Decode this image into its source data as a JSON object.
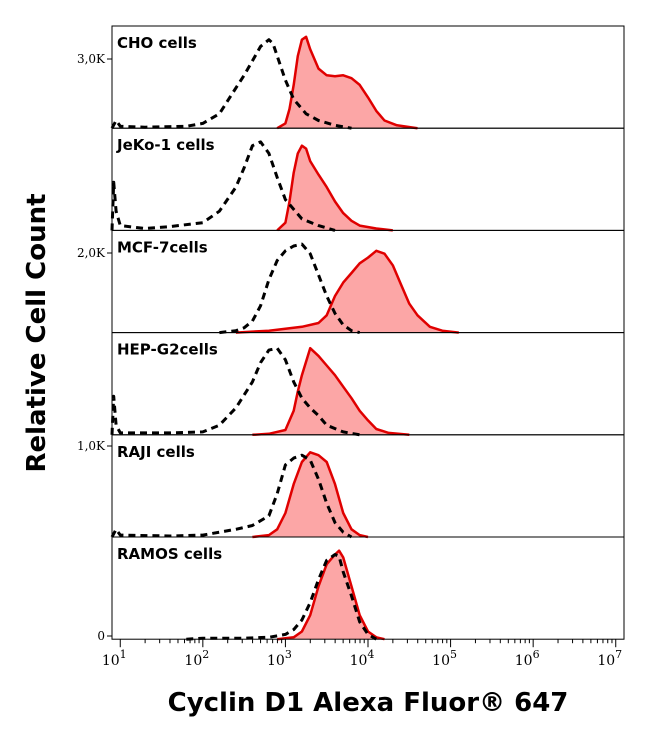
{
  "chart_data": {
    "type": "area",
    "xlabel": "Cyclin D1 Alexa Fluor® 647",
    "ylabel": "Relative Cell Count",
    "x_scale": "log",
    "x_ticks": [
      {
        "base": "10",
        "exp": "1"
      },
      {
        "base": "10",
        "exp": "2"
      },
      {
        "base": "10",
        "exp": "3"
      },
      {
        "base": "10",
        "exp": "4"
      },
      {
        "base": "10",
        "exp": "5"
      },
      {
        "base": "10",
        "exp": "6"
      },
      {
        "base": "10",
        "exp": "7"
      }
    ],
    "y_ticks": [
      "3,0K",
      "2,0K",
      "1,0K",
      "0"
    ],
    "xlim": [
      0.9,
      7.1
    ],
    "grid": false,
    "colors": {
      "sample_fill": "#fca6a6",
      "sample_line": "#e00000",
      "control_line": "#000000"
    },
    "panels": [
      {
        "label": "CHO cells",
        "sample": [
          [
            2.9,
            0
          ],
          [
            3.0,
            0.05
          ],
          [
            3.05,
            0.2
          ],
          [
            3.1,
            0.45
          ],
          [
            3.15,
            0.75
          ],
          [
            3.2,
            0.92
          ],
          [
            3.25,
            0.95
          ],
          [
            3.3,
            0.82
          ],
          [
            3.4,
            0.62
          ],
          [
            3.5,
            0.55
          ],
          [
            3.6,
            0.54
          ],
          [
            3.7,
            0.55
          ],
          [
            3.8,
            0.52
          ],
          [
            3.9,
            0.45
          ],
          [
            4.0,
            0.32
          ],
          [
            4.1,
            0.18
          ],
          [
            4.2,
            0.08
          ],
          [
            4.35,
            0.03
          ],
          [
            4.6,
            0
          ]
        ],
        "control": [
          [
            0.9,
            0
          ],
          [
            0.95,
            0.08
          ],
          [
            1.0,
            0.02
          ],
          [
            1.3,
            0.01
          ],
          [
            1.8,
            0.02
          ],
          [
            2.0,
            0.05
          ],
          [
            2.2,
            0.15
          ],
          [
            2.35,
            0.35
          ],
          [
            2.5,
            0.55
          ],
          [
            2.6,
            0.7
          ],
          [
            2.7,
            0.85
          ],
          [
            2.8,
            0.92
          ],
          [
            2.85,
            0.88
          ],
          [
            2.9,
            0.75
          ],
          [
            3.0,
            0.5
          ],
          [
            3.1,
            0.3
          ],
          [
            3.25,
            0.15
          ],
          [
            3.4,
            0.08
          ],
          [
            3.6,
            0.03
          ],
          [
            3.8,
            0
          ]
        ]
      },
      {
        "label": "JeKo-1 cells",
        "sample": [
          [
            2.9,
            0
          ],
          [
            3.0,
            0.08
          ],
          [
            3.05,
            0.3
          ],
          [
            3.1,
            0.6
          ],
          [
            3.15,
            0.8
          ],
          [
            3.2,
            0.88
          ],
          [
            3.25,
            0.85
          ],
          [
            3.3,
            0.72
          ],
          [
            3.4,
            0.58
          ],
          [
            3.5,
            0.45
          ],
          [
            3.6,
            0.3
          ],
          [
            3.7,
            0.18
          ],
          [
            3.8,
            0.1
          ],
          [
            3.9,
            0.05
          ],
          [
            4.1,
            0.02
          ],
          [
            4.3,
            0
          ]
        ],
        "control": [
          [
            0.9,
            0
          ],
          [
            0.92,
            0.5
          ],
          [
            0.95,
            0.2
          ],
          [
            1.0,
            0.05
          ],
          [
            1.3,
            0.02
          ],
          [
            1.6,
            0.04
          ],
          [
            2.0,
            0.08
          ],
          [
            2.2,
            0.2
          ],
          [
            2.4,
            0.45
          ],
          [
            2.5,
            0.65
          ],
          [
            2.6,
            0.88
          ],
          [
            2.7,
            0.92
          ],
          [
            2.8,
            0.8
          ],
          [
            2.9,
            0.55
          ],
          [
            3.0,
            0.32
          ],
          [
            3.2,
            0.12
          ],
          [
            3.4,
            0.05
          ],
          [
            3.6,
            0
          ]
        ]
      },
      {
        "label": "MCF-7cells",
        "sample": [
          [
            2.4,
            0
          ],
          [
            2.6,
            0.01
          ],
          [
            2.8,
            0.02
          ],
          [
            3.0,
            0.04
          ],
          [
            3.2,
            0.06
          ],
          [
            3.4,
            0.1
          ],
          [
            3.5,
            0.18
          ],
          [
            3.6,
            0.38
          ],
          [
            3.7,
            0.52
          ],
          [
            3.8,
            0.62
          ],
          [
            3.9,
            0.72
          ],
          [
            4.0,
            0.78
          ],
          [
            4.1,
            0.85
          ],
          [
            4.2,
            0.82
          ],
          [
            4.3,
            0.7
          ],
          [
            4.4,
            0.5
          ],
          [
            4.5,
            0.3
          ],
          [
            4.6,
            0.18
          ],
          [
            4.75,
            0.06
          ],
          [
            4.9,
            0.02
          ],
          [
            5.1,
            0
          ]
        ],
        "control": [
          [
            2.2,
            0
          ],
          [
            2.4,
            0.02
          ],
          [
            2.5,
            0.05
          ],
          [
            2.6,
            0.12
          ],
          [
            2.7,
            0.28
          ],
          [
            2.8,
            0.55
          ],
          [
            2.9,
            0.75
          ],
          [
            3.0,
            0.85
          ],
          [
            3.1,
            0.9
          ],
          [
            3.2,
            0.92
          ],
          [
            3.3,
            0.82
          ],
          [
            3.4,
            0.6
          ],
          [
            3.5,
            0.38
          ],
          [
            3.6,
            0.2
          ],
          [
            3.7,
            0.08
          ],
          [
            3.8,
            0.02
          ],
          [
            3.9,
            0
          ]
        ]
      },
      {
        "label": "HEP-G2cells",
        "sample": [
          [
            2.6,
            0
          ],
          [
            2.8,
            0.01
          ],
          [
            3.0,
            0.05
          ],
          [
            3.1,
            0.25
          ],
          [
            3.15,
            0.45
          ],
          [
            3.2,
            0.62
          ],
          [
            3.3,
            0.9
          ],
          [
            3.4,
            0.82
          ],
          [
            3.5,
            0.72
          ],
          [
            3.6,
            0.62
          ],
          [
            3.7,
            0.5
          ],
          [
            3.8,
            0.38
          ],
          [
            3.9,
            0.25
          ],
          [
            4.0,
            0.15
          ],
          [
            4.1,
            0.06
          ],
          [
            4.25,
            0.02
          ],
          [
            4.5,
            0
          ]
        ],
        "control": [
          [
            0.9,
            0
          ],
          [
            0.92,
            0.4
          ],
          [
            0.95,
            0.1
          ],
          [
            1.0,
            0.02
          ],
          [
            1.6,
            0.02
          ],
          [
            2.0,
            0.03
          ],
          [
            2.2,
            0.1
          ],
          [
            2.4,
            0.28
          ],
          [
            2.6,
            0.55
          ],
          [
            2.7,
            0.75
          ],
          [
            2.8,
            0.88
          ],
          [
            2.9,
            0.9
          ],
          [
            3.0,
            0.78
          ],
          [
            3.1,
            0.55
          ],
          [
            3.2,
            0.38
          ],
          [
            3.3,
            0.28
          ],
          [
            3.4,
            0.2
          ],
          [
            3.5,
            0.1
          ],
          [
            3.7,
            0.03
          ],
          [
            3.9,
            0
          ]
        ]
      },
      {
        "label": "RAJI cells",
        "sample": [
          [
            2.6,
            0
          ],
          [
            2.8,
            0.02
          ],
          [
            2.9,
            0.08
          ],
          [
            3.0,
            0.25
          ],
          [
            3.1,
            0.55
          ],
          [
            3.2,
            0.78
          ],
          [
            3.3,
            0.88
          ],
          [
            3.4,
            0.85
          ],
          [
            3.5,
            0.78
          ],
          [
            3.6,
            0.55
          ],
          [
            3.7,
            0.25
          ],
          [
            3.8,
            0.08
          ],
          [
            3.9,
            0.02
          ],
          [
            4.0,
            0
          ]
        ],
        "control": [
          [
            0.9,
            0
          ],
          [
            0.95,
            0.08
          ],
          [
            1.0,
            0.02
          ],
          [
            1.6,
            0.01
          ],
          [
            2.0,
            0.02
          ],
          [
            2.4,
            0.08
          ],
          [
            2.6,
            0.12
          ],
          [
            2.8,
            0.22
          ],
          [
            2.9,
            0.45
          ],
          [
            3.0,
            0.75
          ],
          [
            3.1,
            0.82
          ],
          [
            3.2,
            0.85
          ],
          [
            3.3,
            0.8
          ],
          [
            3.4,
            0.6
          ],
          [
            3.5,
            0.35
          ],
          [
            3.6,
            0.15
          ],
          [
            3.7,
            0.05
          ],
          [
            3.8,
            0
          ]
        ]
      },
      {
        "label": "RAMOS cells",
        "sample": [
          [
            2.9,
            0
          ],
          [
            3.1,
            0.02
          ],
          [
            3.2,
            0.08
          ],
          [
            3.3,
            0.25
          ],
          [
            3.4,
            0.55
          ],
          [
            3.5,
            0.78
          ],
          [
            3.6,
            0.88
          ],
          [
            3.65,
            0.92
          ],
          [
            3.7,
            0.85
          ],
          [
            3.8,
            0.55
          ],
          [
            3.9,
            0.25
          ],
          [
            4.0,
            0.08
          ],
          [
            4.1,
            0.02
          ],
          [
            4.2,
            0
          ]
        ],
        "control": [
          [
            1.8,
            0
          ],
          [
            2.0,
            0.01
          ],
          [
            2.5,
            0.01
          ],
          [
            2.8,
            0.02
          ],
          [
            3.0,
            0.05
          ],
          [
            3.1,
            0.1
          ],
          [
            3.2,
            0.2
          ],
          [
            3.3,
            0.38
          ],
          [
            3.4,
            0.62
          ],
          [
            3.5,
            0.82
          ],
          [
            3.6,
            0.88
          ],
          [
            3.65,
            0.86
          ],
          [
            3.7,
            0.7
          ],
          [
            3.8,
            0.45
          ],
          [
            3.9,
            0.18
          ],
          [
            4.0,
            0.05
          ],
          [
            4.1,
            0
          ]
        ]
      }
    ]
  }
}
